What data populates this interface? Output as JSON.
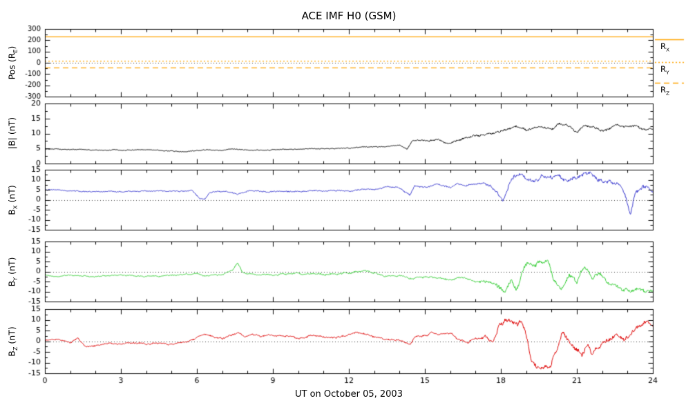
{
  "chart": {
    "title": "ACE IMF H0 (GSM)",
    "xlabel": "UT on October 05, 2003",
    "colors": {
      "black": "#000000",
      "blue": "#3333cc",
      "green": "#33cc33",
      "red": "#dd0000",
      "orange": "#ffa500"
    },
    "x": {
      "min": 0,
      "max": 24,
      "major_ticks": [
        0,
        3,
        6,
        9,
        12,
        15,
        18,
        21,
        24
      ],
      "minor_step": 1
    }
  },
  "chart_data": [
    {
      "type": "line",
      "name": "spacecraft-position",
      "ylabel": {
        "base": "Pos (R",
        "sub": "E",
        "suffix": ")"
      },
      "ylim": [
        -300,
        300
      ],
      "yticks": [
        -300,
        -200,
        -100,
        0,
        100,
        200,
        300
      ],
      "yminor": 50,
      "zero_line": true,
      "ref_lines": [
        {
          "label": {
            "base": "R",
            "sub": "X"
          },
          "value": 230,
          "style": "solid"
        },
        {
          "label": {
            "base": "R",
            "sub": "Y"
          },
          "value": 15,
          "style": "dotted"
        },
        {
          "label": {
            "base": "R",
            "sub": "Z"
          },
          "value": -45,
          "style": "dashed"
        }
      ]
    },
    {
      "type": "line",
      "name": "field-magnitude",
      "ylabel": {
        "base": "|B| (nT)",
        "sub": "",
        "suffix": ""
      },
      "ylim": [
        0,
        20
      ],
      "yticks": [
        0,
        5,
        10,
        15,
        20
      ],
      "yminor": 2.5,
      "zero_line": false,
      "series": [
        {
          "name": "Bmag",
          "color": "#000000",
          "noise": [
            [
              0,
              0.15
            ],
            [
              14,
              0.2
            ],
            [
              16,
              0.4
            ],
            [
              24,
              0.5
            ]
          ],
          "points": [
            [
              0,
              4.8
            ],
            [
              1,
              4.6
            ],
            [
              2,
              4.5
            ],
            [
              3,
              4.4
            ],
            [
              4,
              4.6
            ],
            [
              5,
              4.2
            ],
            [
              5.5,
              3.9
            ],
            [
              6,
              4.3
            ],
            [
              6.5,
              4.6
            ],
            [
              7,
              4.4
            ],
            [
              7.5,
              4.8
            ],
            [
              8,
              4.5
            ],
            [
              9,
              4.6
            ],
            [
              10,
              4.8
            ],
            [
              11,
              5.0
            ],
            [
              12,
              5.2
            ],
            [
              12.5,
              5.4
            ],
            [
              13,
              5.6
            ],
            [
              13.5,
              5.8
            ],
            [
              14,
              6.0
            ],
            [
              14.3,
              5.0
            ],
            [
              14.5,
              7.5
            ],
            [
              14.8,
              7.8
            ],
            [
              15,
              7.5
            ],
            [
              15.5,
              8.0
            ],
            [
              16,
              7.0
            ],
            [
              16.5,
              8.5
            ],
            [
              17,
              9.0
            ],
            [
              17.5,
              9.5
            ],
            [
              18,
              10.5
            ],
            [
              18.3,
              11.5
            ],
            [
              18.6,
              12.0
            ],
            [
              19,
              11.0
            ],
            [
              19.3,
              12.5
            ],
            [
              19.6,
              12.0
            ],
            [
              20,
              11.5
            ],
            [
              20.3,
              13.0
            ],
            [
              20.6,
              12.5
            ],
            [
              21,
              10.5
            ],
            [
              21.3,
              12.8
            ],
            [
              21.6,
              12.0
            ],
            [
              22,
              11.0
            ],
            [
              22.3,
              12.0
            ],
            [
              22.6,
              13.0
            ],
            [
              23,
              12.5
            ],
            [
              23.3,
              13.2
            ],
            [
              23.6,
              12.0
            ],
            [
              24,
              11.5
            ]
          ]
        }
      ]
    },
    {
      "type": "line",
      "name": "bx-component",
      "ylabel": {
        "base": "B",
        "sub": "X",
        "suffix": " (nT)"
      },
      "ylim": [
        -15,
        15
      ],
      "yticks": [
        -15,
        -10,
        -5,
        0,
        5,
        10,
        15
      ],
      "yminor": 2.5,
      "zero_line": true,
      "series": [
        {
          "name": "Bx",
          "color": "#3333cc",
          "noise": [
            [
              0,
              0.3
            ],
            [
              17,
              0.5
            ],
            [
              18,
              1.2
            ],
            [
              24,
              1.2
            ]
          ],
          "points": [
            [
              0,
              5.0
            ],
            [
              1,
              4.5
            ],
            [
              2,
              4.2
            ],
            [
              3,
              4.0
            ],
            [
              4,
              4.5
            ],
            [
              5,
              4.2
            ],
            [
              5.8,
              4.5
            ],
            [
              6.1,
              1.0
            ],
            [
              6.3,
              0.5
            ],
            [
              6.5,
              3.5
            ],
            [
              7,
              4.0
            ],
            [
              7.6,
              2.5
            ],
            [
              8,
              4.2
            ],
            [
              9,
              4.0
            ],
            [
              10,
              4.2
            ],
            [
              11,
              4.5
            ],
            [
              12,
              4.0
            ],
            [
              12.5,
              5.5
            ],
            [
              13,
              5.0
            ],
            [
              13.5,
              6.5
            ],
            [
              14,
              6.0
            ],
            [
              14.4,
              2.0
            ],
            [
              14.6,
              6.5
            ],
            [
              15,
              6.0
            ],
            [
              15.5,
              7.5
            ],
            [
              16,
              6.0
            ],
            [
              16.3,
              8.0
            ],
            [
              16.6,
              7.0
            ],
            [
              17,
              8.5
            ],
            [
              17.5,
              7.5
            ],
            [
              17.9,
              3.0
            ],
            [
              18.1,
              -1.0
            ],
            [
              18.3,
              6.0
            ],
            [
              18.5,
              11.0
            ],
            [
              18.8,
              12.5
            ],
            [
              19,
              11.0
            ],
            [
              19.3,
              9.0
            ],
            [
              19.6,
              11.5
            ],
            [
              20,
              10.0
            ],
            [
              20.3,
              12.0
            ],
            [
              20.6,
              9.0
            ],
            [
              21,
              11.0
            ],
            [
              21.3,
              12.5
            ],
            [
              21.6,
              12.0
            ],
            [
              22,
              9.0
            ],
            [
              22.3,
              11.0
            ],
            [
              22.6,
              8.0
            ],
            [
              22.9,
              2.0
            ],
            [
              23.1,
              -7.5
            ],
            [
              23.3,
              3.0
            ],
            [
              23.6,
              7.0
            ],
            [
              24,
              4.0
            ]
          ]
        }
      ]
    },
    {
      "type": "line",
      "name": "by-component",
      "ylabel": {
        "base": "B",
        "sub": "Y",
        "suffix": " (nT)"
      },
      "ylim": [
        -15,
        15
      ],
      "yticks": [
        -15,
        -10,
        -5,
        0,
        5,
        10,
        15
      ],
      "yminor": 2.5,
      "zero_line": true,
      "series": [
        {
          "name": "By",
          "color": "#33cc33",
          "noise": [
            [
              0,
              0.3
            ],
            [
              17,
              0.6
            ],
            [
              18,
              1.5
            ],
            [
              24,
              1.2
            ]
          ],
          "points": [
            [
              0,
              -1.5
            ],
            [
              0.5,
              -2.5
            ],
            [
              1,
              -2.0
            ],
            [
              2,
              -2.5
            ],
            [
              3,
              -2.0
            ],
            [
              4,
              -2.5
            ],
            [
              5,
              -2.0
            ],
            [
              6,
              -1.0
            ],
            [
              6.3,
              -2.5
            ],
            [
              7,
              -1.5
            ],
            [
              7.4,
              0.5
            ],
            [
              7.6,
              4.5
            ],
            [
              7.8,
              -0.5
            ],
            [
              8,
              -1.0
            ],
            [
              9,
              -1.5
            ],
            [
              10,
              -1.0
            ],
            [
              11,
              -1.5
            ],
            [
              12,
              -1.0
            ],
            [
              12.6,
              0.5
            ],
            [
              13,
              -1.0
            ],
            [
              13.4,
              -2.5
            ],
            [
              14,
              -2.0
            ],
            [
              14.5,
              -3.5
            ],
            [
              15,
              -2.5
            ],
            [
              15.5,
              -3.0
            ],
            [
              16,
              -4.0
            ],
            [
              16.5,
              -3.0
            ],
            [
              17,
              -4.5
            ],
            [
              17.5,
              -5.0
            ],
            [
              17.9,
              -8.0
            ],
            [
              18.1,
              -10.5
            ],
            [
              18.4,
              -4.0
            ],
            [
              18.6,
              -8.5
            ],
            [
              18.9,
              2.0
            ],
            [
              19.1,
              4.5
            ],
            [
              19.4,
              3.5
            ],
            [
              19.6,
              5.0
            ],
            [
              19.9,
              4.0
            ],
            [
              20.1,
              -6.0
            ],
            [
              20.4,
              -8.5
            ],
            [
              20.7,
              -3.0
            ],
            [
              21,
              -6.5
            ],
            [
              21.3,
              2.0
            ],
            [
              21.6,
              -4.0
            ],
            [
              21.9,
              -1.0
            ],
            [
              22.2,
              -5.0
            ],
            [
              22.5,
              -6.5
            ],
            [
              22.8,
              -9.5
            ],
            [
              23.1,
              -10.5
            ],
            [
              23.4,
              -9.0
            ],
            [
              23.7,
              -10.0
            ],
            [
              24,
              -9.0
            ]
          ]
        }
      ]
    },
    {
      "type": "line",
      "name": "bz-component",
      "ylabel": {
        "base": "B",
        "sub": "Z",
        "suffix": " (nT)"
      },
      "ylim": [
        -15,
        15
      ],
      "yticks": [
        -15,
        -10,
        -5,
        0,
        5,
        10,
        15
      ],
      "yminor": 2.5,
      "zero_line": true,
      "series": [
        {
          "name": "Bz",
          "color": "#dd0000",
          "noise": [
            [
              0,
              0.4
            ],
            [
              17,
              0.6
            ],
            [
              18,
              1.3
            ],
            [
              24,
              1.3
            ]
          ],
          "points": [
            [
              0,
              0.5
            ],
            [
              0.5,
              1.0
            ],
            [
              1,
              -0.5
            ],
            [
              1.3,
              1.5
            ],
            [
              1.6,
              -2.5
            ],
            [
              2,
              -2.0
            ],
            [
              2.5,
              -1.0
            ],
            [
              3,
              -1.5
            ],
            [
              3.5,
              -1.0
            ],
            [
              4,
              -1.5
            ],
            [
              4.5,
              -1.0
            ],
            [
              5,
              -1.5
            ],
            [
              5.5,
              -0.5
            ],
            [
              6,
              1.5
            ],
            [
              6.3,
              3.5
            ],
            [
              6.6,
              2.0
            ],
            [
              7,
              1.0
            ],
            [
              7.3,
              3.0
            ],
            [
              7.6,
              4.0
            ],
            [
              7.9,
              2.0
            ],
            [
              8.2,
              3.5
            ],
            [
              8.5,
              2.5
            ],
            [
              9,
              3.0
            ],
            [
              9.5,
              2.0
            ],
            [
              10,
              1.5
            ],
            [
              10.5,
              2.5
            ],
            [
              11,
              2.0
            ],
            [
              11.5,
              1.5
            ],
            [
              12,
              2.5
            ],
            [
              12.3,
              4.0
            ],
            [
              12.6,
              3.0
            ],
            [
              13,
              2.0
            ],
            [
              13.5,
              0.5
            ],
            [
              14,
              0.0
            ],
            [
              14.4,
              -1.5
            ],
            [
              14.6,
              2.0
            ],
            [
              15,
              2.5
            ],
            [
              15.3,
              4.0
            ],
            [
              15.6,
              3.0
            ],
            [
              16,
              3.5
            ],
            [
              16.4,
              0.5
            ],
            [
              16.7,
              -0.5
            ],
            [
              17,
              1.0
            ],
            [
              17.4,
              2.0
            ],
            [
              17.7,
              0.5
            ],
            [
              18,
              8.0
            ],
            [
              18.2,
              10.5
            ],
            [
              18.5,
              8.0
            ],
            [
              18.8,
              9.0
            ],
            [
              19,
              3.0
            ],
            [
              19.2,
              -8.0
            ],
            [
              19.4,
              -11.5
            ],
            [
              19.7,
              -12.0
            ],
            [
              20,
              -10.0
            ],
            [
              20.2,
              -3.0
            ],
            [
              20.4,
              4.5
            ],
            [
              20.6,
              2.0
            ],
            [
              20.8,
              -2.0
            ],
            [
              21,
              -5.5
            ],
            [
              21.2,
              -7.5
            ],
            [
              21.4,
              -2.0
            ],
            [
              21.6,
              -6.0
            ],
            [
              21.8,
              -3.5
            ],
            [
              22,
              -1.0
            ],
            [
              22.3,
              1.5
            ],
            [
              22.6,
              3.0
            ],
            [
              22.9,
              1.0
            ],
            [
              23.2,
              5.0
            ],
            [
              23.5,
              8.5
            ],
            [
              23.8,
              9.5
            ],
            [
              24,
              7.0
            ]
          ]
        }
      ]
    }
  ]
}
